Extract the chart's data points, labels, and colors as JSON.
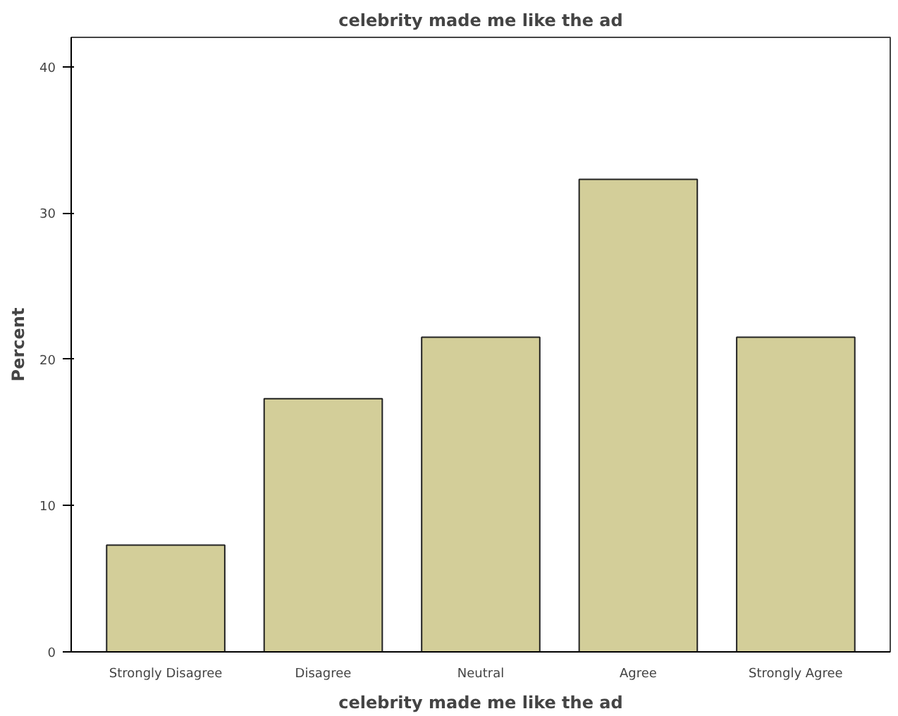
{
  "chart_data": {
    "type": "bar",
    "title": "celebrity made me like the ad",
    "xlabel": "celebrity made me like the ad",
    "ylabel": "Percent",
    "categories": [
      "Strongly Disagree",
      "Disagree",
      "Neutral",
      "Agree",
      "Strongly Agree"
    ],
    "values": [
      7.3,
      17.3,
      21.5,
      32.3,
      21.5
    ],
    "color": "#d3ce99",
    "ylim": [
      0,
      42
    ],
    "yticks": [
      0,
      10,
      20,
      30,
      40
    ],
    "grid": false
  }
}
